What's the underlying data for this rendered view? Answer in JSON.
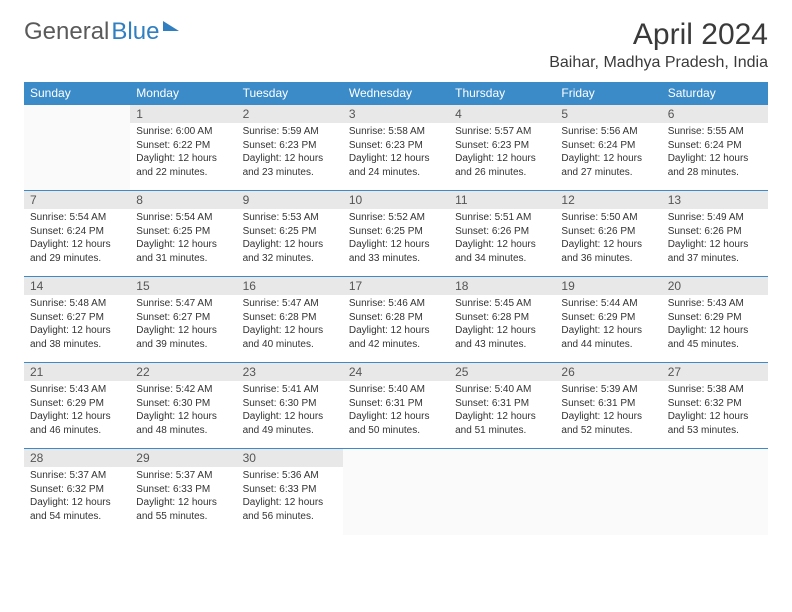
{
  "brand": {
    "part1": "General",
    "part2": "Blue"
  },
  "title": "April 2024",
  "location": "Baihar, Madhya Pradesh, India",
  "colors": {
    "header_bg": "#3b8bc9",
    "header_text": "#ffffff",
    "daynum_bg": "#e8e8e8",
    "border": "#3b8bc9",
    "text": "#333333",
    "brand_gray": "#5a5a5a",
    "brand_blue": "#2f7fc1"
  },
  "weekdays": [
    "Sunday",
    "Monday",
    "Tuesday",
    "Wednesday",
    "Thursday",
    "Friday",
    "Saturday"
  ],
  "layout": {
    "first_weekday_index": 1,
    "days_in_month": 30
  },
  "days": {
    "1": {
      "sunrise": "6:00 AM",
      "sunset": "6:22 PM",
      "daylight": "12 hours and 22 minutes."
    },
    "2": {
      "sunrise": "5:59 AM",
      "sunset": "6:23 PM",
      "daylight": "12 hours and 23 minutes."
    },
    "3": {
      "sunrise": "5:58 AM",
      "sunset": "6:23 PM",
      "daylight": "12 hours and 24 minutes."
    },
    "4": {
      "sunrise": "5:57 AM",
      "sunset": "6:23 PM",
      "daylight": "12 hours and 26 minutes."
    },
    "5": {
      "sunrise": "5:56 AM",
      "sunset": "6:24 PM",
      "daylight": "12 hours and 27 minutes."
    },
    "6": {
      "sunrise": "5:55 AM",
      "sunset": "6:24 PM",
      "daylight": "12 hours and 28 minutes."
    },
    "7": {
      "sunrise": "5:54 AM",
      "sunset": "6:24 PM",
      "daylight": "12 hours and 29 minutes."
    },
    "8": {
      "sunrise": "5:54 AM",
      "sunset": "6:25 PM",
      "daylight": "12 hours and 31 minutes."
    },
    "9": {
      "sunrise": "5:53 AM",
      "sunset": "6:25 PM",
      "daylight": "12 hours and 32 minutes."
    },
    "10": {
      "sunrise": "5:52 AM",
      "sunset": "6:25 PM",
      "daylight": "12 hours and 33 minutes."
    },
    "11": {
      "sunrise": "5:51 AM",
      "sunset": "6:26 PM",
      "daylight": "12 hours and 34 minutes."
    },
    "12": {
      "sunrise": "5:50 AM",
      "sunset": "6:26 PM",
      "daylight": "12 hours and 36 minutes."
    },
    "13": {
      "sunrise": "5:49 AM",
      "sunset": "6:26 PM",
      "daylight": "12 hours and 37 minutes."
    },
    "14": {
      "sunrise": "5:48 AM",
      "sunset": "6:27 PM",
      "daylight": "12 hours and 38 minutes."
    },
    "15": {
      "sunrise": "5:47 AM",
      "sunset": "6:27 PM",
      "daylight": "12 hours and 39 minutes."
    },
    "16": {
      "sunrise": "5:47 AM",
      "sunset": "6:28 PM",
      "daylight": "12 hours and 40 minutes."
    },
    "17": {
      "sunrise": "5:46 AM",
      "sunset": "6:28 PM",
      "daylight": "12 hours and 42 minutes."
    },
    "18": {
      "sunrise": "5:45 AM",
      "sunset": "6:28 PM",
      "daylight": "12 hours and 43 minutes."
    },
    "19": {
      "sunrise": "5:44 AM",
      "sunset": "6:29 PM",
      "daylight": "12 hours and 44 minutes."
    },
    "20": {
      "sunrise": "5:43 AM",
      "sunset": "6:29 PM",
      "daylight": "12 hours and 45 minutes."
    },
    "21": {
      "sunrise": "5:43 AM",
      "sunset": "6:29 PM",
      "daylight": "12 hours and 46 minutes."
    },
    "22": {
      "sunrise": "5:42 AM",
      "sunset": "6:30 PM",
      "daylight": "12 hours and 48 minutes."
    },
    "23": {
      "sunrise": "5:41 AM",
      "sunset": "6:30 PM",
      "daylight": "12 hours and 49 minutes."
    },
    "24": {
      "sunrise": "5:40 AM",
      "sunset": "6:31 PM",
      "daylight": "12 hours and 50 minutes."
    },
    "25": {
      "sunrise": "5:40 AM",
      "sunset": "6:31 PM",
      "daylight": "12 hours and 51 minutes."
    },
    "26": {
      "sunrise": "5:39 AM",
      "sunset": "6:31 PM",
      "daylight": "12 hours and 52 minutes."
    },
    "27": {
      "sunrise": "5:38 AM",
      "sunset": "6:32 PM",
      "daylight": "12 hours and 53 minutes."
    },
    "28": {
      "sunrise": "5:37 AM",
      "sunset": "6:32 PM",
      "daylight": "12 hours and 54 minutes."
    },
    "29": {
      "sunrise": "5:37 AM",
      "sunset": "6:33 PM",
      "daylight": "12 hours and 55 minutes."
    },
    "30": {
      "sunrise": "5:36 AM",
      "sunset": "6:33 PM",
      "daylight": "12 hours and 56 minutes."
    }
  },
  "labels": {
    "sunrise": "Sunrise:",
    "sunset": "Sunset:",
    "daylight": "Daylight:"
  }
}
